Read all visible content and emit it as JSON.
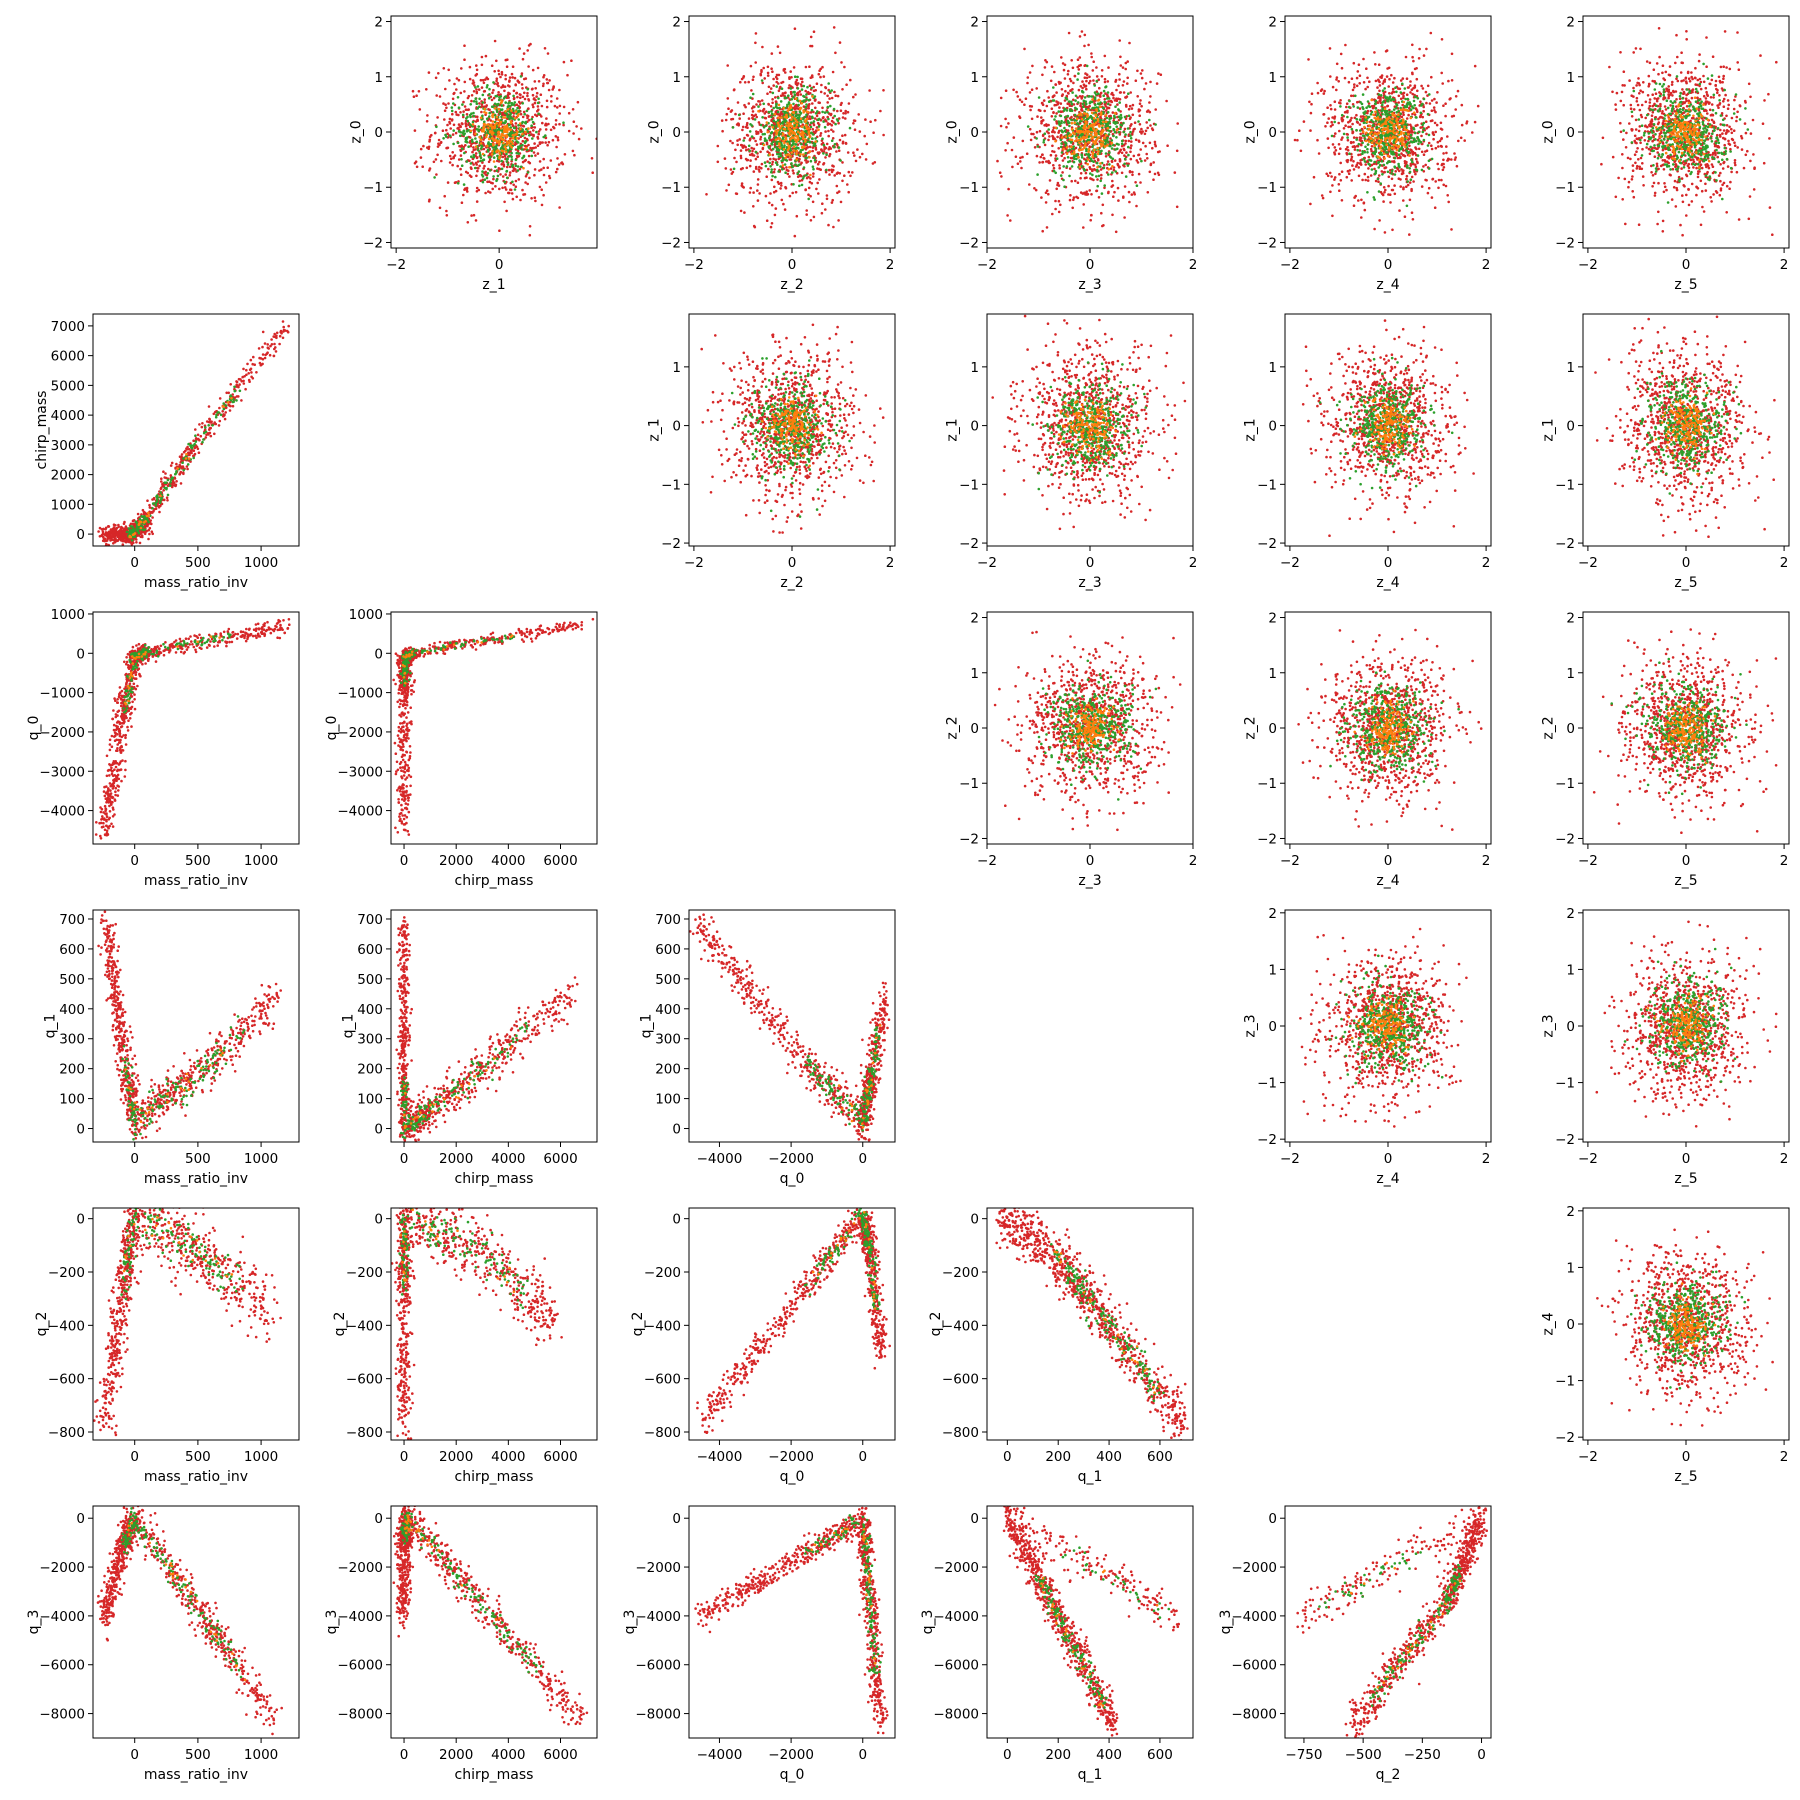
{
  "colors": {
    "red": "#d62728",
    "green": "#2ca02c",
    "orange": "#ff7f0e"
  },
  "layout_spec": {
    "rows": 6,
    "cols": 6,
    "x_vars": [
      "mass_ratio_inv",
      "chirp_mass",
      "q_0",
      "q_1",
      "q_2",
      "z_1",
      "z_2",
      "z_3",
      "z_4",
      "z_5"
    ],
    "y_vars": [
      "z_0",
      "chirp_mass",
      "z_1",
      "q_0",
      "z_2",
      "q_1",
      "z_3",
      "q_2",
      "z_4",
      "q_3"
    ]
  },
  "chart_data": [
    {
      "type": "scatter",
      "row": 0,
      "col": 1,
      "xlabel": "z_1",
      "ylabel": "z_0",
      "xlim": [
        -2.1,
        1.9
      ],
      "ylim": [
        -2.1,
        2.1
      ],
      "xticks": [
        -2,
        0
      ],
      "yticks": [
        -2,
        -1,
        0,
        1,
        2
      ],
      "shape": "blob",
      "sd": 0.65
    },
    {
      "type": "scatter",
      "row": 0,
      "col": 2,
      "xlabel": "z_2",
      "ylabel": "z_0",
      "xlim": [
        -2.1,
        2.1
      ],
      "ylim": [
        -2.1,
        2.1
      ],
      "xticks": [
        -2,
        0,
        2
      ],
      "yticks": [
        -2,
        -1,
        0,
        1,
        2
      ],
      "shape": "blob",
      "sd": 0.65
    },
    {
      "type": "scatter",
      "row": 0,
      "col": 3,
      "xlabel": "z_3",
      "ylabel": "z_0",
      "xlim": [
        -2.0,
        2.0
      ],
      "ylim": [
        -2.1,
        2.1
      ],
      "xticks": [
        -2,
        0,
        2
      ],
      "yticks": [
        -2,
        -1,
        0,
        1,
        2
      ],
      "shape": "blob",
      "sd": 0.65
    },
    {
      "type": "scatter",
      "row": 0,
      "col": 4,
      "xlabel": "z_4",
      "ylabel": "z_0",
      "xlim": [
        -2.1,
        2.1
      ],
      "ylim": [
        -2.1,
        2.1
      ],
      "xticks": [
        -2,
        0,
        2
      ],
      "yticks": [
        -2,
        -1,
        0,
        1,
        2
      ],
      "shape": "blob",
      "sd": 0.65
    },
    {
      "type": "scatter",
      "row": 0,
      "col": 5,
      "xlabel": "z_5",
      "ylabel": "z_0",
      "xlim": [
        -2.1,
        2.1
      ],
      "ylim": [
        -2.1,
        2.1
      ],
      "xticks": [
        -2,
        0,
        2
      ],
      "yticks": [
        -2,
        -1,
        0,
        1,
        2
      ],
      "shape": "blob",
      "sd": 0.65
    },
    {
      "type": "scatter",
      "row": 1,
      "col": 0,
      "xlabel": "mass_ratio_inv",
      "ylabel": "chirp_mass",
      "xlim": [
        -330,
        1300
      ],
      "ylim": [
        -400,
        7400
      ],
      "xticks": [
        0,
        500,
        1000
      ],
      "yticks": [
        0,
        1000,
        2000,
        3000,
        4000,
        5000,
        6000,
        7000
      ],
      "shape": "pw",
      "knots": [
        [
          -230,
          -10
        ],
        [
          -100,
          -20
        ],
        [
          0,
          20
        ],
        [
          100,
          600
        ],
        [
          500,
          3150
        ],
        [
          1200,
          7000
        ]
      ],
      "noise": 150,
      "xfrac": 0.055
    },
    {
      "type": "scatter",
      "row": 1,
      "col": 2,
      "xlabel": "z_2",
      "ylabel": "z_1",
      "xlim": [
        -2.1,
        2.1
      ],
      "ylim": [
        -2.05,
        1.9
      ],
      "xticks": [
        -2,
        0,
        2
      ],
      "yticks": [
        -2,
        -1,
        0,
        1
      ],
      "shape": "blob",
      "sd": 0.65
    },
    {
      "type": "scatter",
      "row": 1,
      "col": 3,
      "xlabel": "z_3",
      "ylabel": "z_1",
      "xlim": [
        -2.0,
        2.0
      ],
      "ylim": [
        -2.05,
        1.9
      ],
      "xticks": [
        -2,
        0,
        2
      ],
      "yticks": [
        -2,
        -1,
        0,
        1
      ],
      "shape": "blob",
      "sd": 0.65
    },
    {
      "type": "scatter",
      "row": 1,
      "col": 4,
      "xlabel": "z_4",
      "ylabel": "z_1",
      "xlim": [
        -2.1,
        2.1
      ],
      "ylim": [
        -2.05,
        1.9
      ],
      "xticks": [
        -2,
        0,
        2
      ],
      "yticks": [
        -2,
        -1,
        0,
        1
      ],
      "shape": "blob",
      "sd": 0.65
    },
    {
      "type": "scatter",
      "row": 1,
      "col": 5,
      "xlabel": "z_5",
      "ylabel": "z_1",
      "xlim": [
        -2.1,
        2.1
      ],
      "ylim": [
        -2.05,
        1.9
      ],
      "xticks": [
        -2,
        0,
        2
      ],
      "yticks": [
        -2,
        -1,
        0,
        1
      ],
      "shape": "blob",
      "sd": 0.65
    },
    {
      "type": "scatter",
      "row": 2,
      "col": 0,
      "xlabel": "mass_ratio_inv",
      "ylabel": "q_0",
      "xlim": [
        -330,
        1300
      ],
      "ylim": [
        -4850,
        1050
      ],
      "xticks": [
        0,
        500,
        1000
      ],
      "yticks": [
        -4000,
        -3000,
        -2000,
        -1000,
        0,
        1000
      ],
      "shape": "pw",
      "knots": [
        [
          -240,
          -4600
        ],
        [
          -100,
          -1800
        ],
        [
          0,
          -100
        ],
        [
          100,
          30
        ],
        [
          1200,
          700
        ]
      ],
      "noise": 90,
      "xfrac": 0.06
    },
    {
      "type": "scatter",
      "row": 2,
      "col": 1,
      "xlabel": "chirp_mass",
      "ylabel": "q_0",
      "xlim": [
        -500,
        7400
      ],
      "ylim": [
        -4850,
        1050
      ],
      "xticks": [
        0,
        2000,
        4000,
        6000
      ],
      "yticks": [
        -4000,
        -3000,
        -2000,
        -1000,
        0,
        1000
      ],
      "shape": "pw",
      "knots": [
        [
          0,
          -4600
        ],
        [
          0,
          -1000
        ],
        [
          30,
          -100
        ],
        [
          300,
          0
        ],
        [
          7000,
          760
        ]
      ],
      "noise": 70,
      "xfrac": 0.05
    },
    {
      "type": "scatter",
      "row": 2,
      "col": 3,
      "xlabel": "z_3",
      "ylabel": "z_2",
      "xlim": [
        -2.0,
        2.0
      ],
      "ylim": [
        -2.1,
        2.1
      ],
      "xticks": [
        -2,
        0,
        2
      ],
      "yticks": [
        -2,
        -1,
        0,
        1,
        2
      ],
      "shape": "blob",
      "sd": 0.65
    },
    {
      "type": "scatter",
      "row": 2,
      "col": 4,
      "xlabel": "z_4",
      "ylabel": "z_2",
      "xlim": [
        -2.1,
        2.1
      ],
      "ylim": [
        -2.1,
        2.1
      ],
      "xticks": [
        -2,
        0,
        2
      ],
      "yticks": [
        -2,
        -1,
        0,
        1,
        2
      ],
      "shape": "blob",
      "sd": 0.65
    },
    {
      "type": "scatter",
      "row": 2,
      "col": 5,
      "xlabel": "z_5",
      "ylabel": "z_2",
      "xlim": [
        -2.1,
        2.1
      ],
      "ylim": [
        -2.1,
        2.1
      ],
      "xticks": [
        -2,
        0,
        2
      ],
      "yticks": [
        -2,
        -1,
        0,
        1,
        2
      ],
      "shape": "blob",
      "sd": 0.65
    },
    {
      "type": "scatter",
      "row": 3,
      "col": 0,
      "xlabel": "mass_ratio_inv",
      "ylabel": "q_1",
      "xlim": [
        -330,
        1300
      ],
      "ylim": [
        -45,
        730
      ],
      "xticks": [
        0,
        500,
        1000
      ],
      "yticks": [
        0,
        100,
        200,
        300,
        400,
        500,
        600,
        700
      ],
      "shape": "pw",
      "knots": [
        [
          -230,
          690
        ],
        [
          -100,
          280
        ],
        [
          0,
          20
        ],
        [
          500,
          180
        ],
        [
          1100,
          430
        ]
      ],
      "noise": 40,
      "xfrac": 0.05
    },
    {
      "type": "scatter",
      "row": 3,
      "col": 1,
      "xlabel": "chirp_mass",
      "ylabel": "q_1",
      "xlim": [
        -500,
        7400
      ],
      "ylim": [
        -45,
        730
      ],
      "xticks": [
        0,
        2000,
        4000,
        6000
      ],
      "yticks": [
        0,
        100,
        200,
        300,
        400,
        500,
        600,
        700
      ],
      "shape": "pw",
      "knots": [
        [
          0,
          690
        ],
        [
          0,
          300
        ],
        [
          0,
          0
        ],
        [
          1000,
          60
        ],
        [
          3000,
          200
        ],
        [
          6500,
          460
        ]
      ],
      "noise": 35,
      "xfrac": 0.04
    },
    {
      "type": "scatter",
      "row": 3,
      "col": 2,
      "xlabel": "q_0",
      "ylabel": "q_1",
      "xlim": [
        -4850,
        900
      ],
      "ylim": [
        -45,
        730
      ],
      "xticks": [
        -4000,
        -2000,
        0
      ],
      "yticks": [
        0,
        100,
        200,
        300,
        400,
        500,
        600,
        700
      ],
      "shape": "pw",
      "knots": [
        [
          -4600,
          690
        ],
        [
          -2000,
          280
        ],
        [
          0,
          20
        ],
        [
          200,
          150
        ],
        [
          650,
          450
        ]
      ],
      "noise": 35,
      "xfrac": 0.05
    },
    {
      "type": "scatter",
      "row": 3,
      "col": 4,
      "xlabel": "z_4",
      "ylabel": "z_3",
      "xlim": [
        -2.1,
        2.1
      ],
      "ylim": [
        -2.05,
        2.05
      ],
      "xticks": [
        -2,
        0,
        2
      ],
      "yticks": [
        -2,
        -1,
        0,
        1,
        2
      ],
      "shape": "blob",
      "sd": 0.65
    },
    {
      "type": "scatter",
      "row": 3,
      "col": 5,
      "xlabel": "z_5",
      "ylabel": "z_3",
      "xlim": [
        -2.1,
        2.1
      ],
      "ylim": [
        -2.05,
        2.05
      ],
      "xticks": [
        -2,
        0,
        2
      ],
      "yticks": [
        -2,
        -1,
        0,
        1,
        2
      ],
      "shape": "blob",
      "sd": 0.65
    },
    {
      "type": "scatter",
      "row": 4,
      "col": 0,
      "xlabel": "mass_ratio_inv",
      "ylabel": "q_2",
      "xlim": [
        -330,
        1300
      ],
      "ylim": [
        -830,
        40
      ],
      "xticks": [
        0,
        500,
        1000
      ],
      "yticks": [
        -800,
        -600,
        -400,
        -200,
        0
      ],
      "shape": "pw",
      "knots": [
        [
          -240,
          -780
        ],
        [
          -100,
          -300
        ],
        [
          0,
          10
        ],
        [
          500,
          -120
        ],
        [
          1100,
          -350
        ]
      ],
      "noise": 70,
      "xfrac": 0.06
    },
    {
      "type": "scatter",
      "row": 4,
      "col": 1,
      "xlabel": "chirp_mass",
      "ylabel": "q_2",
      "xlim": [
        -500,
        7400
      ],
      "ylim": [
        -830,
        40
      ],
      "xticks": [
        0,
        2000,
        4000,
        6000
      ],
      "yticks": [
        -800,
        -600,
        -400,
        -200,
        0
      ],
      "shape": "pw",
      "knots": [
        [
          0,
          -780
        ],
        [
          0,
          -300
        ],
        [
          30,
          10
        ],
        [
          3000,
          -120
        ],
        [
          5800,
          -400
        ]
      ],
      "noise": 65,
      "xfrac": 0.05
    },
    {
      "type": "scatter",
      "row": 4,
      "col": 2,
      "xlabel": "q_0",
      "ylabel": "q_2",
      "xlim": [
        -4850,
        900
      ],
      "ylim": [
        -830,
        40
      ],
      "xticks": [
        -4000,
        -2000,
        0
      ],
      "yticks": [
        -800,
        -600,
        -400,
        -200,
        0
      ],
      "shape": "pw",
      "knots": [
        [
          -4600,
          -780
        ],
        [
          -2000,
          -330
        ],
        [
          0,
          20
        ],
        [
          200,
          -120
        ],
        [
          500,
          -500
        ]
      ],
      "noise": 30,
      "xfrac": 0.05
    },
    {
      "type": "scatter",
      "row": 4,
      "col": 3,
      "xlabel": "q_1",
      "ylabel": "q_2",
      "xlim": [
        -80,
        730
      ],
      "ylim": [
        -830,
        40
      ],
      "xticks": [
        0,
        200,
        400,
        600
      ],
      "yticks": [
        -800,
        -600,
        -400,
        -200,
        0
      ],
      "shape": "pw",
      "knots": [
        [
          -30,
          20
        ],
        [
          200,
          -150
        ],
        [
          400,
          -400
        ],
        [
          690,
          -780
        ]
      ],
      "noise": 50,
      "xfrac": 0.05
    },
    {
      "type": "scatter",
      "row": 4,
      "col": 5,
      "xlabel": "z_5",
      "ylabel": "z_4",
      "xlim": [
        -2.1,
        2.1
      ],
      "ylim": [
        -2.05,
        2.05
      ],
      "xticks": [
        -2,
        0,
        2
      ],
      "yticks": [
        -2,
        -1,
        0,
        1,
        2
      ],
      "shape": "blob",
      "sd": 0.65
    },
    {
      "type": "scatter",
      "row": 5,
      "col": 0,
      "xlabel": "mass_ratio_inv",
      "ylabel": "q_3",
      "xlim": [
        -330,
        1300
      ],
      "ylim": [
        -9000,
        500
      ],
      "xticks": [
        0,
        500,
        1000
      ],
      "yticks": [
        -8000,
        -6000,
        -4000,
        -2000,
        0
      ],
      "shape": "pw",
      "knots": [
        [
          -240,
          -4100
        ],
        [
          -100,
          -1200
        ],
        [
          0,
          0
        ],
        [
          500,
          -3700
        ],
        [
          1100,
          -8300
        ]
      ],
      "noise": 400,
      "xfrac": 0.05
    },
    {
      "type": "scatter",
      "row": 5,
      "col": 1,
      "xlabel": "chirp_mass",
      "ylabel": "q_3",
      "xlim": [
        -500,
        7400
      ],
      "ylim": [
        -9000,
        500
      ],
      "xticks": [
        0,
        2000,
        4000,
        6000
      ],
      "yticks": [
        -8000,
        -6000,
        -4000,
        -2000,
        0
      ],
      "shape": "pw",
      "knots": [
        [
          0,
          -4100
        ],
        [
          0,
          -1000
        ],
        [
          100,
          0
        ],
        [
          3000,
          -3500
        ],
        [
          6800,
          -8300
        ]
      ],
      "noise": 380,
      "xfrac": 0.05
    },
    {
      "type": "scatter",
      "row": 5,
      "col": 2,
      "xlabel": "q_0",
      "ylabel": "q_3",
      "xlim": [
        -4850,
        900
      ],
      "ylim": [
        -9000,
        500
      ],
      "xticks": [
        -4000,
        -2000,
        0
      ],
      "yticks": [
        -8000,
        -6000,
        -4000,
        -2000,
        0
      ],
      "shape": "pw",
      "knots": [
        [
          -4600,
          -4100
        ],
        [
          -2000,
          -1800
        ],
        [
          0,
          0
        ],
        [
          200,
          -3500
        ],
        [
          500,
          -8500
        ]
      ],
      "noise": 250,
      "xfrac": 0.05
    },
    {
      "type": "scatter",
      "row": 5,
      "col": 3,
      "xlabel": "q_1",
      "ylabel": "q_3",
      "xlim": [
        -80,
        730
      ],
      "ylim": [
        -9000,
        500
      ],
      "xticks": [
        0,
        200,
        400,
        600
      ],
      "yticks": [
        -8000,
        -6000,
        -4000,
        -2000,
        0
      ],
      "shape": "pw",
      "knots": [
        [
          0,
          0
        ],
        [
          200,
          -4000
        ],
        [
          420,
          -8500
        ]
      ],
      "noise": 400,
      "xfrac": 0.05,
      "branch": [
        [
          0,
          0
        ],
        [
          690,
          -4200
        ]
      ]
    },
    {
      "type": "scatter",
      "row": 5,
      "col": 4,
      "xlabel": "q_2",
      "ylabel": "q_3",
      "xlim": [
        -830,
        40
      ],
      "ylim": [
        -9000,
        500
      ],
      "xticks": [
        -750,
        -500,
        -250,
        0
      ],
      "yticks": [
        -8000,
        -6000,
        -4000,
        -2000,
        0
      ],
      "shape": "pw",
      "knots": [
        [
          0,
          0
        ],
        [
          -150,
          -3500
        ],
        [
          -550,
          -8500
        ]
      ],
      "noise": 400,
      "xfrac": 0.05,
      "branch": [
        [
          0,
          0
        ],
        [
          -780,
          -4100
        ]
      ]
    }
  ]
}
